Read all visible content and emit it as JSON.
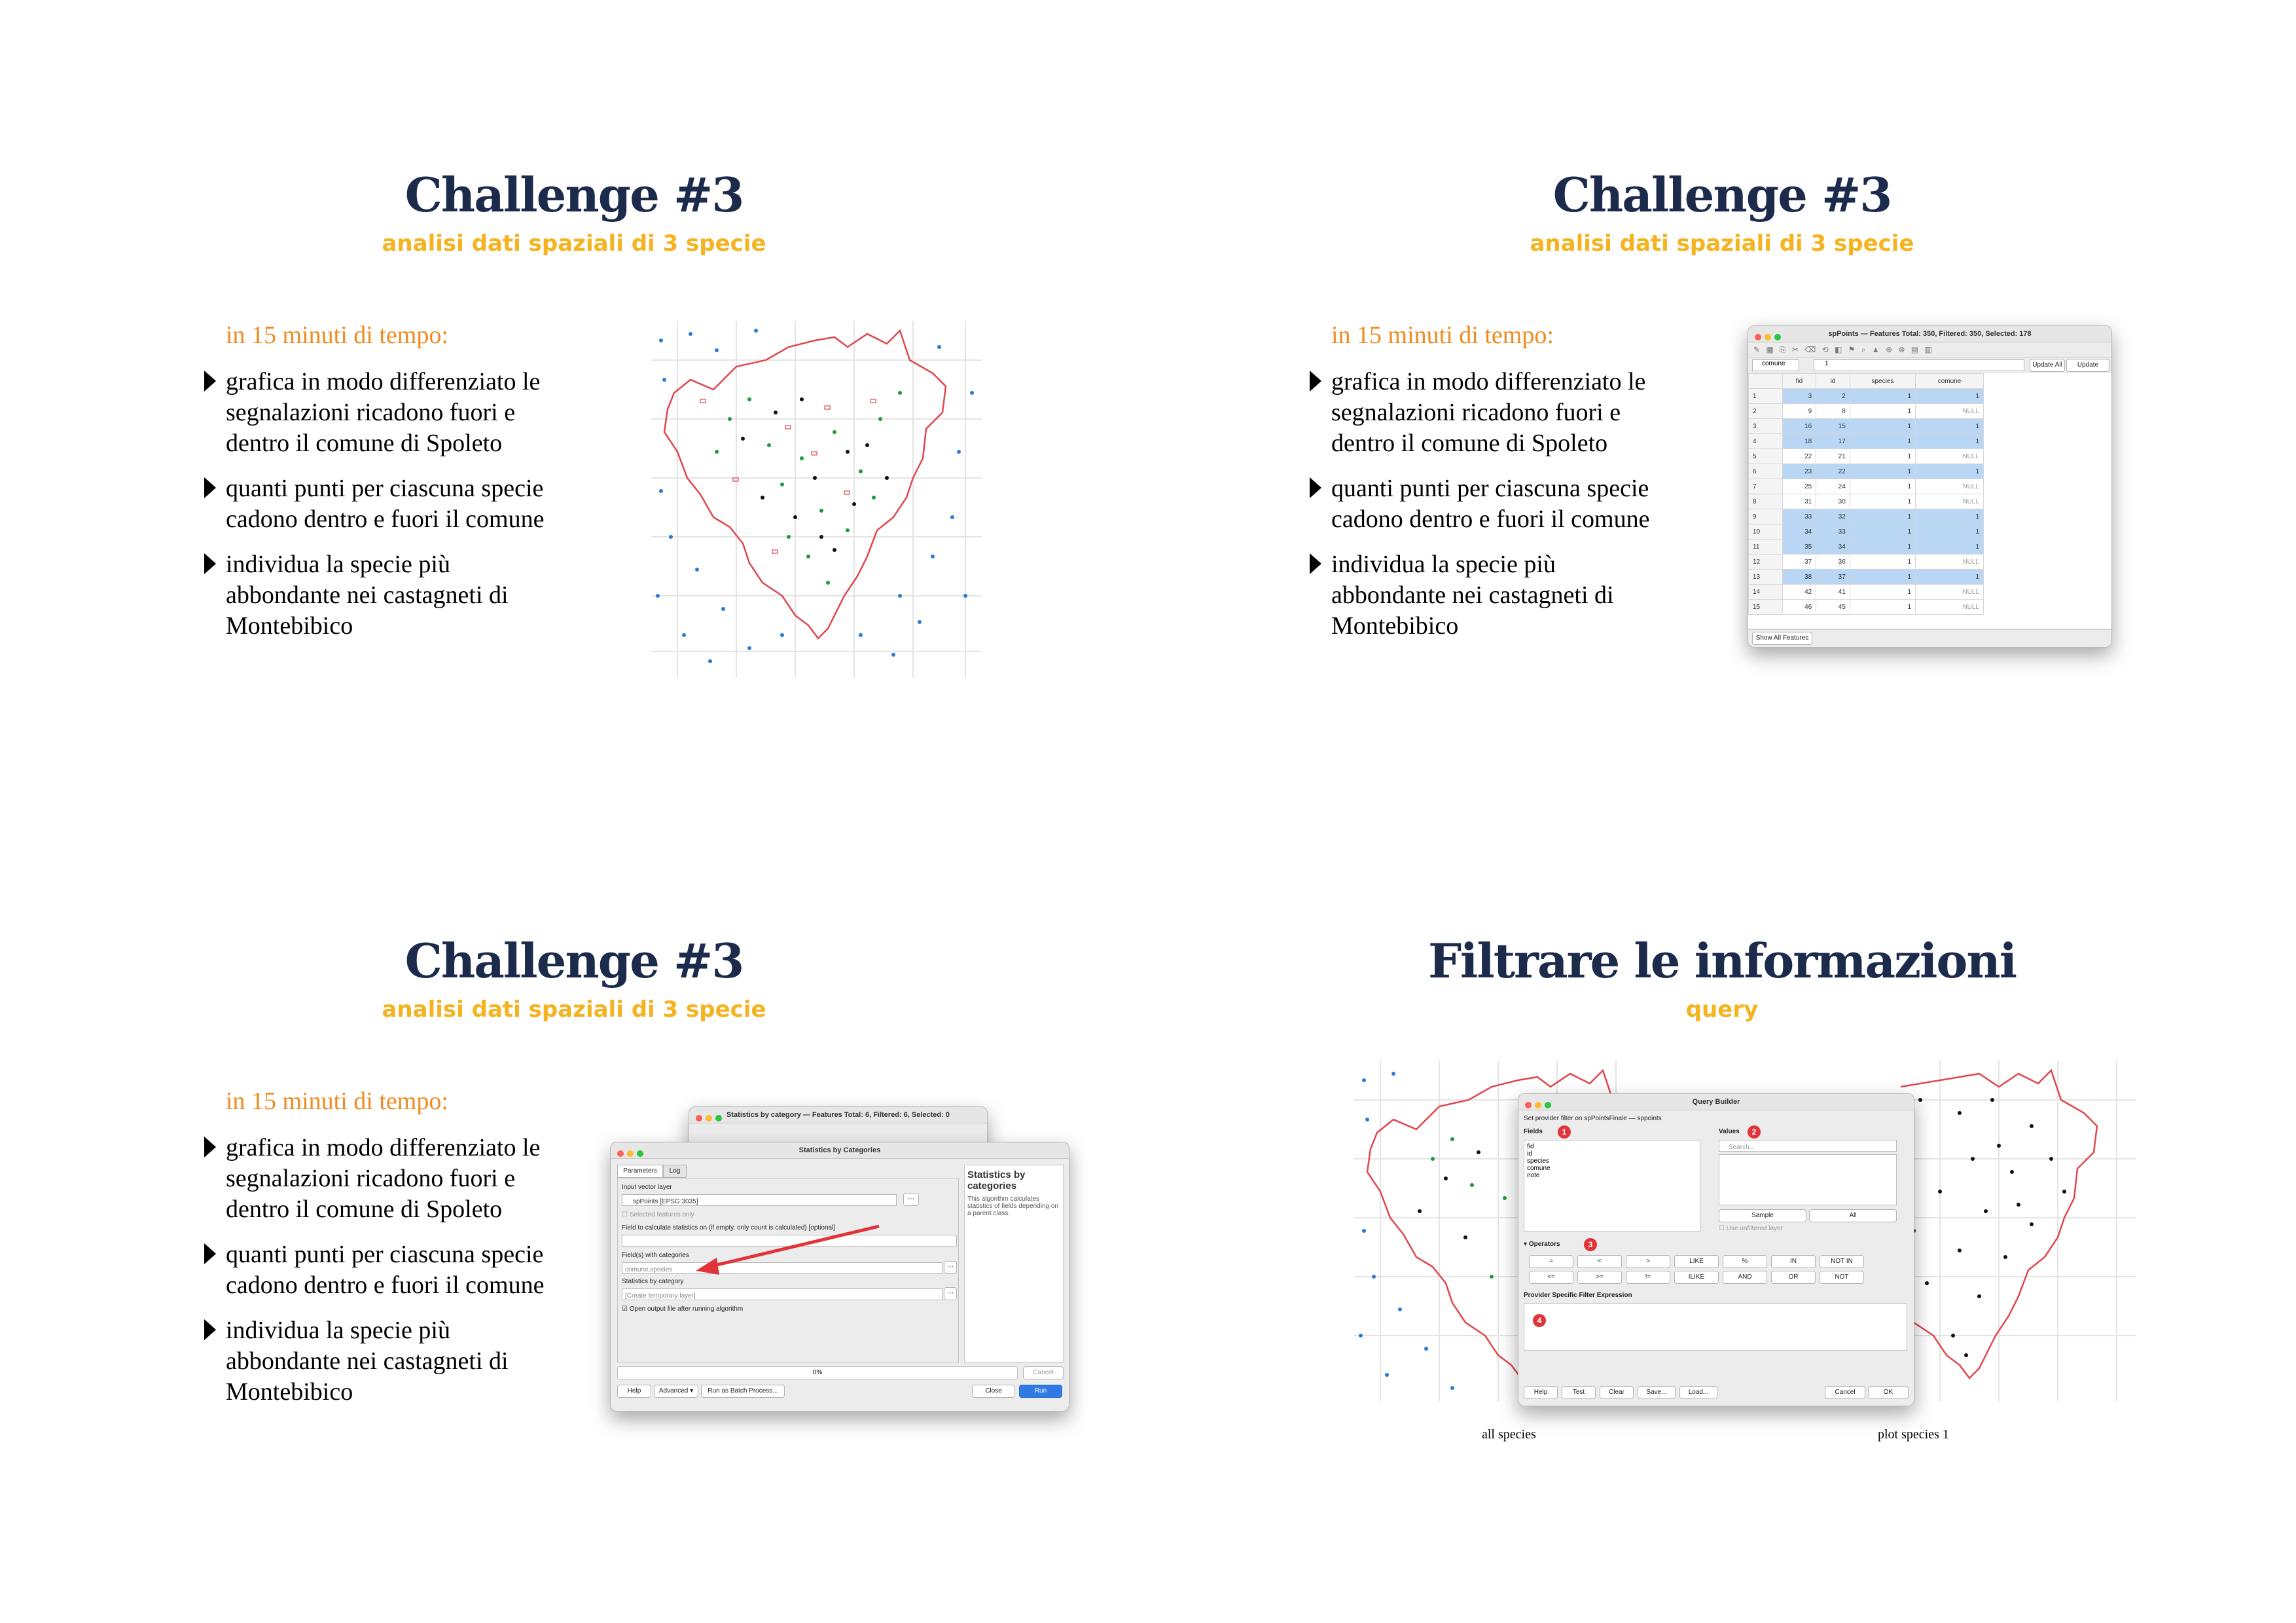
{
  "slides": [
    {
      "title": "Challenge #3",
      "subtitle": "analisi dati spaziali di 3 specie",
      "time_heading": "in 15 minuti di tempo:",
      "bullets": [
        "grafica in modo differenziato le segnalazioni ricadono fuori e dentro il comune di Spoleto",
        "quanti punti per ciascuna specie cadono dentro e fuori il comune",
        "individua la specie più abbondante nei castagneti di Montebibico"
      ]
    },
    {
      "title": "Challenge #3",
      "subtitle": "analisi dati spaziali di 3 specie",
      "time_heading": "in 15 minuti di tempo:",
      "bullets": [
        "grafica in modo differenziato le segnalazioni ricadono fuori e dentro il comune di Spoleto",
        "quanti punti per ciascuna specie cadono dentro e fuori il comune",
        "individua la specie più abbondante nei castagneti di Montebibico"
      ],
      "attr_table": {
        "window_title": "spPoints — Features Total: 350, Filtered: 350, Selected: 178",
        "field_select": "comune",
        "expression": "1",
        "update_all": "Update All",
        "update_selected": "Update Selected",
        "columns": [
          "fid",
          "id",
          "species",
          "comune"
        ],
        "rows": [
          {
            "n": "1",
            "fid": "3",
            "id": "2",
            "species": "1",
            "comune": "1",
            "sel": true
          },
          {
            "n": "2",
            "fid": "9",
            "id": "8",
            "species": "1",
            "comune": "NULL",
            "sel": false
          },
          {
            "n": "3",
            "fid": "16",
            "id": "15",
            "species": "1",
            "comune": "1",
            "sel": true
          },
          {
            "n": "4",
            "fid": "18",
            "id": "17",
            "species": "1",
            "comune": "1",
            "sel": true
          },
          {
            "n": "5",
            "fid": "22",
            "id": "21",
            "species": "1",
            "comune": "NULL",
            "sel": false
          },
          {
            "n": "6",
            "fid": "23",
            "id": "22",
            "species": "1",
            "comune": "1",
            "sel": true
          },
          {
            "n": "7",
            "fid": "25",
            "id": "24",
            "species": "1",
            "comune": "NULL",
            "sel": false
          },
          {
            "n": "8",
            "fid": "31",
            "id": "30",
            "species": "1",
            "comune": "NULL",
            "sel": false
          },
          {
            "n": "9",
            "fid": "33",
            "id": "32",
            "species": "1",
            "comune": "1",
            "sel": true
          },
          {
            "n": "10",
            "fid": "34",
            "id": "33",
            "species": "1",
            "comune": "1",
            "sel": true
          },
          {
            "n": "11",
            "fid": "35",
            "id": "34",
            "species": "1",
            "comune": "1",
            "sel": true
          },
          {
            "n": "12",
            "fid": "37",
            "id": "36",
            "species": "1",
            "comune": "NULL",
            "sel": false
          },
          {
            "n": "13",
            "fid": "38",
            "id": "37",
            "species": "1",
            "comune": "1",
            "sel": true
          },
          {
            "n": "14",
            "fid": "42",
            "id": "41",
            "species": "1",
            "comune": "NULL",
            "sel": false
          },
          {
            "n": "15",
            "fid": "46",
            "id": "45",
            "species": "1",
            "comune": "NULL",
            "sel": false
          }
        ],
        "show_all": "Show All Features"
      }
    },
    {
      "title": "Challenge #3",
      "subtitle": "analisi dati spaziali di 3 specie",
      "time_heading": "in 15 minuti di tempo:",
      "bullets": [
        "grafica in modo differenziato le segnalazioni ricadono fuori e dentro il comune di Spoleto",
        "quanti punti per ciascuna specie cadono dentro e fuori il comune",
        "individua la specie più abbondante nei castagneti di Montebibico"
      ],
      "stats_dialog": {
        "back_window_title": "Statistics by category — Features Total: 6, Filtered: 6, Selected: 0",
        "window_title": "Statistics by Categories",
        "tab_parameters": "Parameters",
        "tab_log": "Log",
        "input_label": "Input vector layer",
        "input_value": "spPoints [EPSG:3035]",
        "selected_only": "Selected features only",
        "field_label": "Field to calculate statistics on (if empty, only count is calculated) [optional]",
        "categories_label": "Field(s) with categories",
        "categories_value": "comune,species",
        "output_label": "Statistics by category",
        "output_value": "[Create temporary layer]",
        "open_after": "Open output file after running algorithm",
        "help_title": "Statistics by categories",
        "help_text": "This algorithm calculates statistics of fields depending on a parent class.",
        "progress": "0%",
        "cancel": "Cancel",
        "help": "Help",
        "advanced": "Advanced",
        "batch": "Run as Batch Process...",
        "close": "Close",
        "run": "Run"
      }
    },
    {
      "title": "Filtrare le informazioni",
      "subtitle": "query",
      "query_builder": {
        "window_title": "Query Builder",
        "provider_label": "Set provider filter on spPointsFinale — sppoints",
        "fields_label": "Fields",
        "fields": [
          "fid",
          "id",
          "species",
          "comune",
          "note"
        ],
        "values_label": "Values",
        "search_placeholder": "Search...",
        "sample": "Sample",
        "all": "All",
        "use_unfiltered": "Use unfiltered layer",
        "operators_label": "Operators",
        "operators_row1": [
          "=",
          "<",
          ">",
          "LIKE",
          "%",
          "IN",
          "NOT IN"
        ],
        "operators_row2": [
          "<=",
          ">=",
          "!=",
          "ILIKE",
          "AND",
          "OR",
          "NOT"
        ],
        "expression_label": "Provider Specific Filter Expression",
        "badges": [
          "1",
          "2",
          "3",
          "4"
        ],
        "help": "Help",
        "test": "Test",
        "clear": "Clear",
        "save": "Save...",
        "load": "Load...",
        "cancel": "Cancel",
        "ok": "OK"
      },
      "captions": {
        "left": "all species",
        "right": "plot species 1"
      }
    }
  ],
  "colors": {
    "title": "#1c2b4b",
    "subtitle": "#f5b320",
    "time_heading": "#ef8b1f",
    "boundary": "#e0474c",
    "species_blue": "#2a7bd4",
    "species_green": "#1f9a3a",
    "species_black": "#111111",
    "selection": "#b9d6f4"
  }
}
